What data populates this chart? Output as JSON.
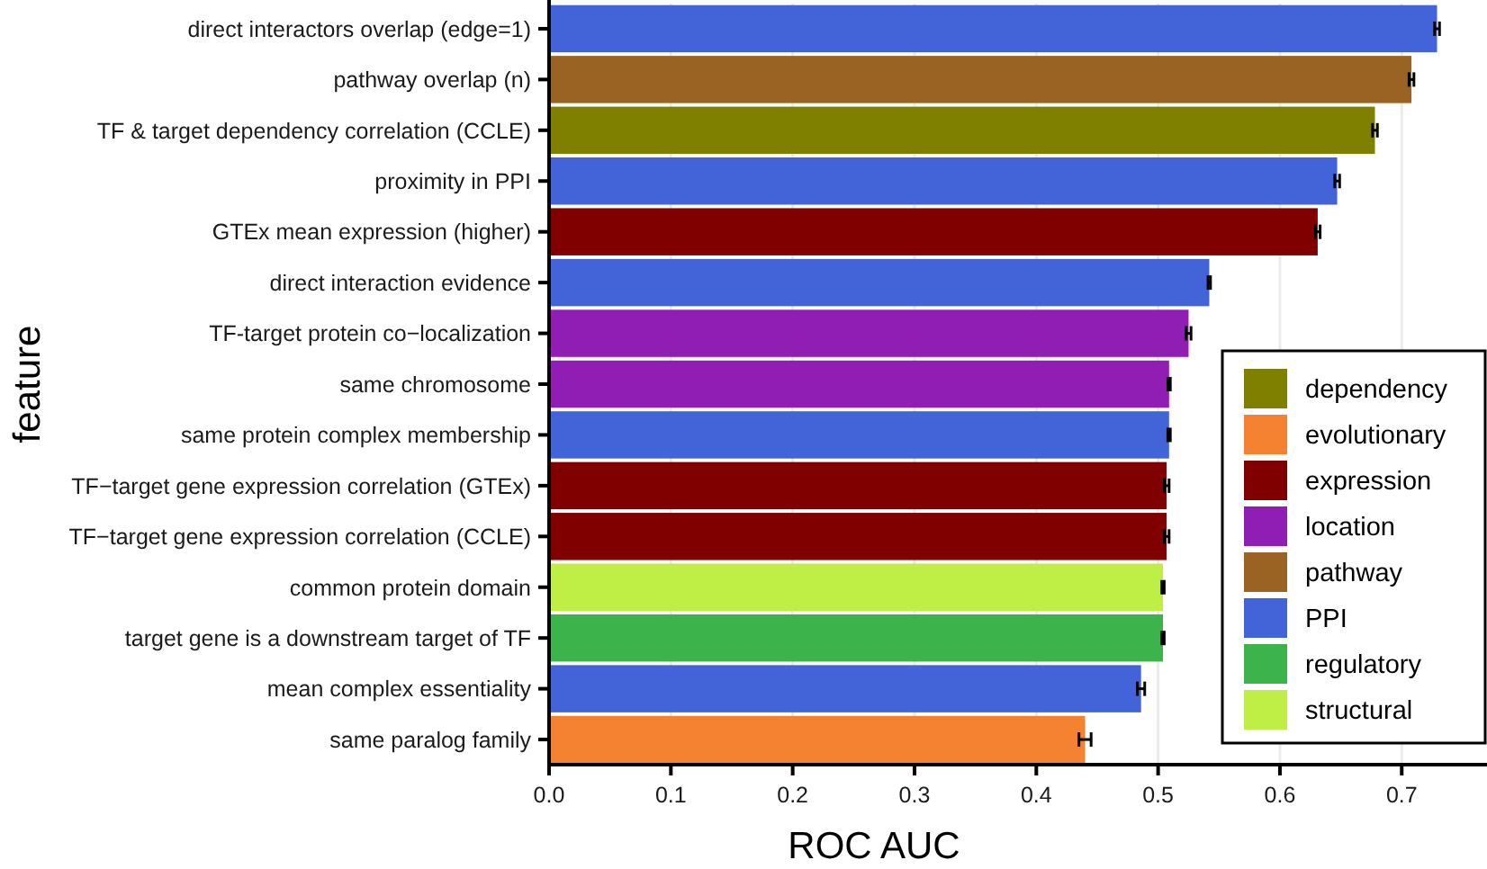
{
  "chart_data": {
    "type": "bar",
    "orientation": "horizontal",
    "xlabel": "ROC AUC",
    "ylabel": "feature",
    "categories": [
      "direct interactors overlap (edge=1)",
      "pathway overlap (n)",
      "TF & target dependency correlation (CCLE)",
      "proximity in PPI",
      "GTEx mean expression (higher)",
      "direct interaction evidence",
      "TF-target protein co−localization",
      "same chromosome",
      "same protein complex membership",
      "TF−target gene expression correlation (GTEx)",
      "TF−target gene expression correlation (CCLE)",
      "common protein domain",
      "target gene is a downstream target of TF",
      "mean complex essentiality",
      "same paralog family"
    ],
    "series": [
      {
        "name": "dependency",
        "color": "#808000",
        "values": [
          null,
          null,
          0.678,
          null,
          null,
          null,
          null,
          null,
          null,
          null,
          null,
          null,
          null,
          null,
          null
        ],
        "errors": [
          null,
          null,
          0.002,
          null,
          null,
          null,
          null,
          null,
          null,
          null,
          null,
          null,
          null,
          null,
          null
        ]
      },
      {
        "name": "evolutionary",
        "color": "#f58231",
        "values": [
          null,
          null,
          null,
          null,
          null,
          null,
          null,
          null,
          null,
          null,
          null,
          null,
          null,
          null,
          0.44
        ],
        "errors": [
          null,
          null,
          null,
          null,
          null,
          null,
          null,
          null,
          null,
          null,
          null,
          null,
          null,
          null,
          0.005
        ]
      },
      {
        "name": "expression",
        "color": "#800000",
        "values": [
          null,
          null,
          null,
          null,
          0.631,
          null,
          null,
          null,
          null,
          0.507,
          0.507,
          null,
          null,
          null,
          null
        ],
        "errors": [
          null,
          null,
          null,
          null,
          0.002,
          null,
          null,
          null,
          null,
          0.002,
          0.002,
          null,
          null,
          null,
          null
        ]
      },
      {
        "name": "location",
        "color": "#911eb4",
        "values": [
          null,
          null,
          null,
          null,
          null,
          null,
          0.525,
          0.509,
          null,
          null,
          null,
          null,
          null,
          null,
          null
        ],
        "errors": [
          null,
          null,
          null,
          null,
          null,
          null,
          0.002,
          0.001,
          null,
          null,
          null,
          null,
          null,
          null,
          null
        ]
      },
      {
        "name": "pathway",
        "color": "#9a6324",
        "values": [
          null,
          0.708,
          null,
          null,
          null,
          null,
          null,
          null,
          null,
          null,
          null,
          null,
          null,
          null,
          null
        ],
        "errors": [
          null,
          0.002,
          null,
          null,
          null,
          null,
          null,
          null,
          null,
          null,
          null,
          null,
          null,
          null,
          null
        ]
      },
      {
        "name": "PPI",
        "color": "#4363d8",
        "values": [
          0.729,
          null,
          null,
          0.647,
          null,
          0.542,
          null,
          null,
          0.509,
          null,
          null,
          null,
          null,
          0.486,
          null
        ],
        "errors": [
          0.002,
          null,
          null,
          0.002,
          null,
          0.001,
          null,
          null,
          0.001,
          null,
          null,
          null,
          null,
          0.003,
          null
        ]
      },
      {
        "name": "regulatory",
        "color": "#3cb44b",
        "values": [
          null,
          null,
          null,
          null,
          null,
          null,
          null,
          null,
          null,
          null,
          null,
          null,
          0.504,
          null,
          null
        ],
        "errors": [
          null,
          null,
          null,
          null,
          null,
          null,
          null,
          null,
          null,
          null,
          null,
          null,
          0.001,
          null,
          null
        ]
      },
      {
        "name": "structural",
        "color": "#bfef45",
        "values": [
          null,
          null,
          null,
          null,
          null,
          null,
          null,
          null,
          null,
          null,
          null,
          0.504,
          null,
          null,
          null
        ],
        "errors": [
          null,
          null,
          null,
          null,
          null,
          null,
          null,
          null,
          null,
          null,
          null,
          0.001,
          null,
          null,
          null
        ]
      }
    ],
    "xlim": [
      0,
      0.77
    ],
    "xticks": [
      {
        "value": 0,
        "label": "0.0"
      },
      0.1,
      0.2,
      0.3,
      0.4,
      0.5,
      0.6,
      0.7
    ],
    "grid": "x",
    "legend": "bottom right"
  }
}
